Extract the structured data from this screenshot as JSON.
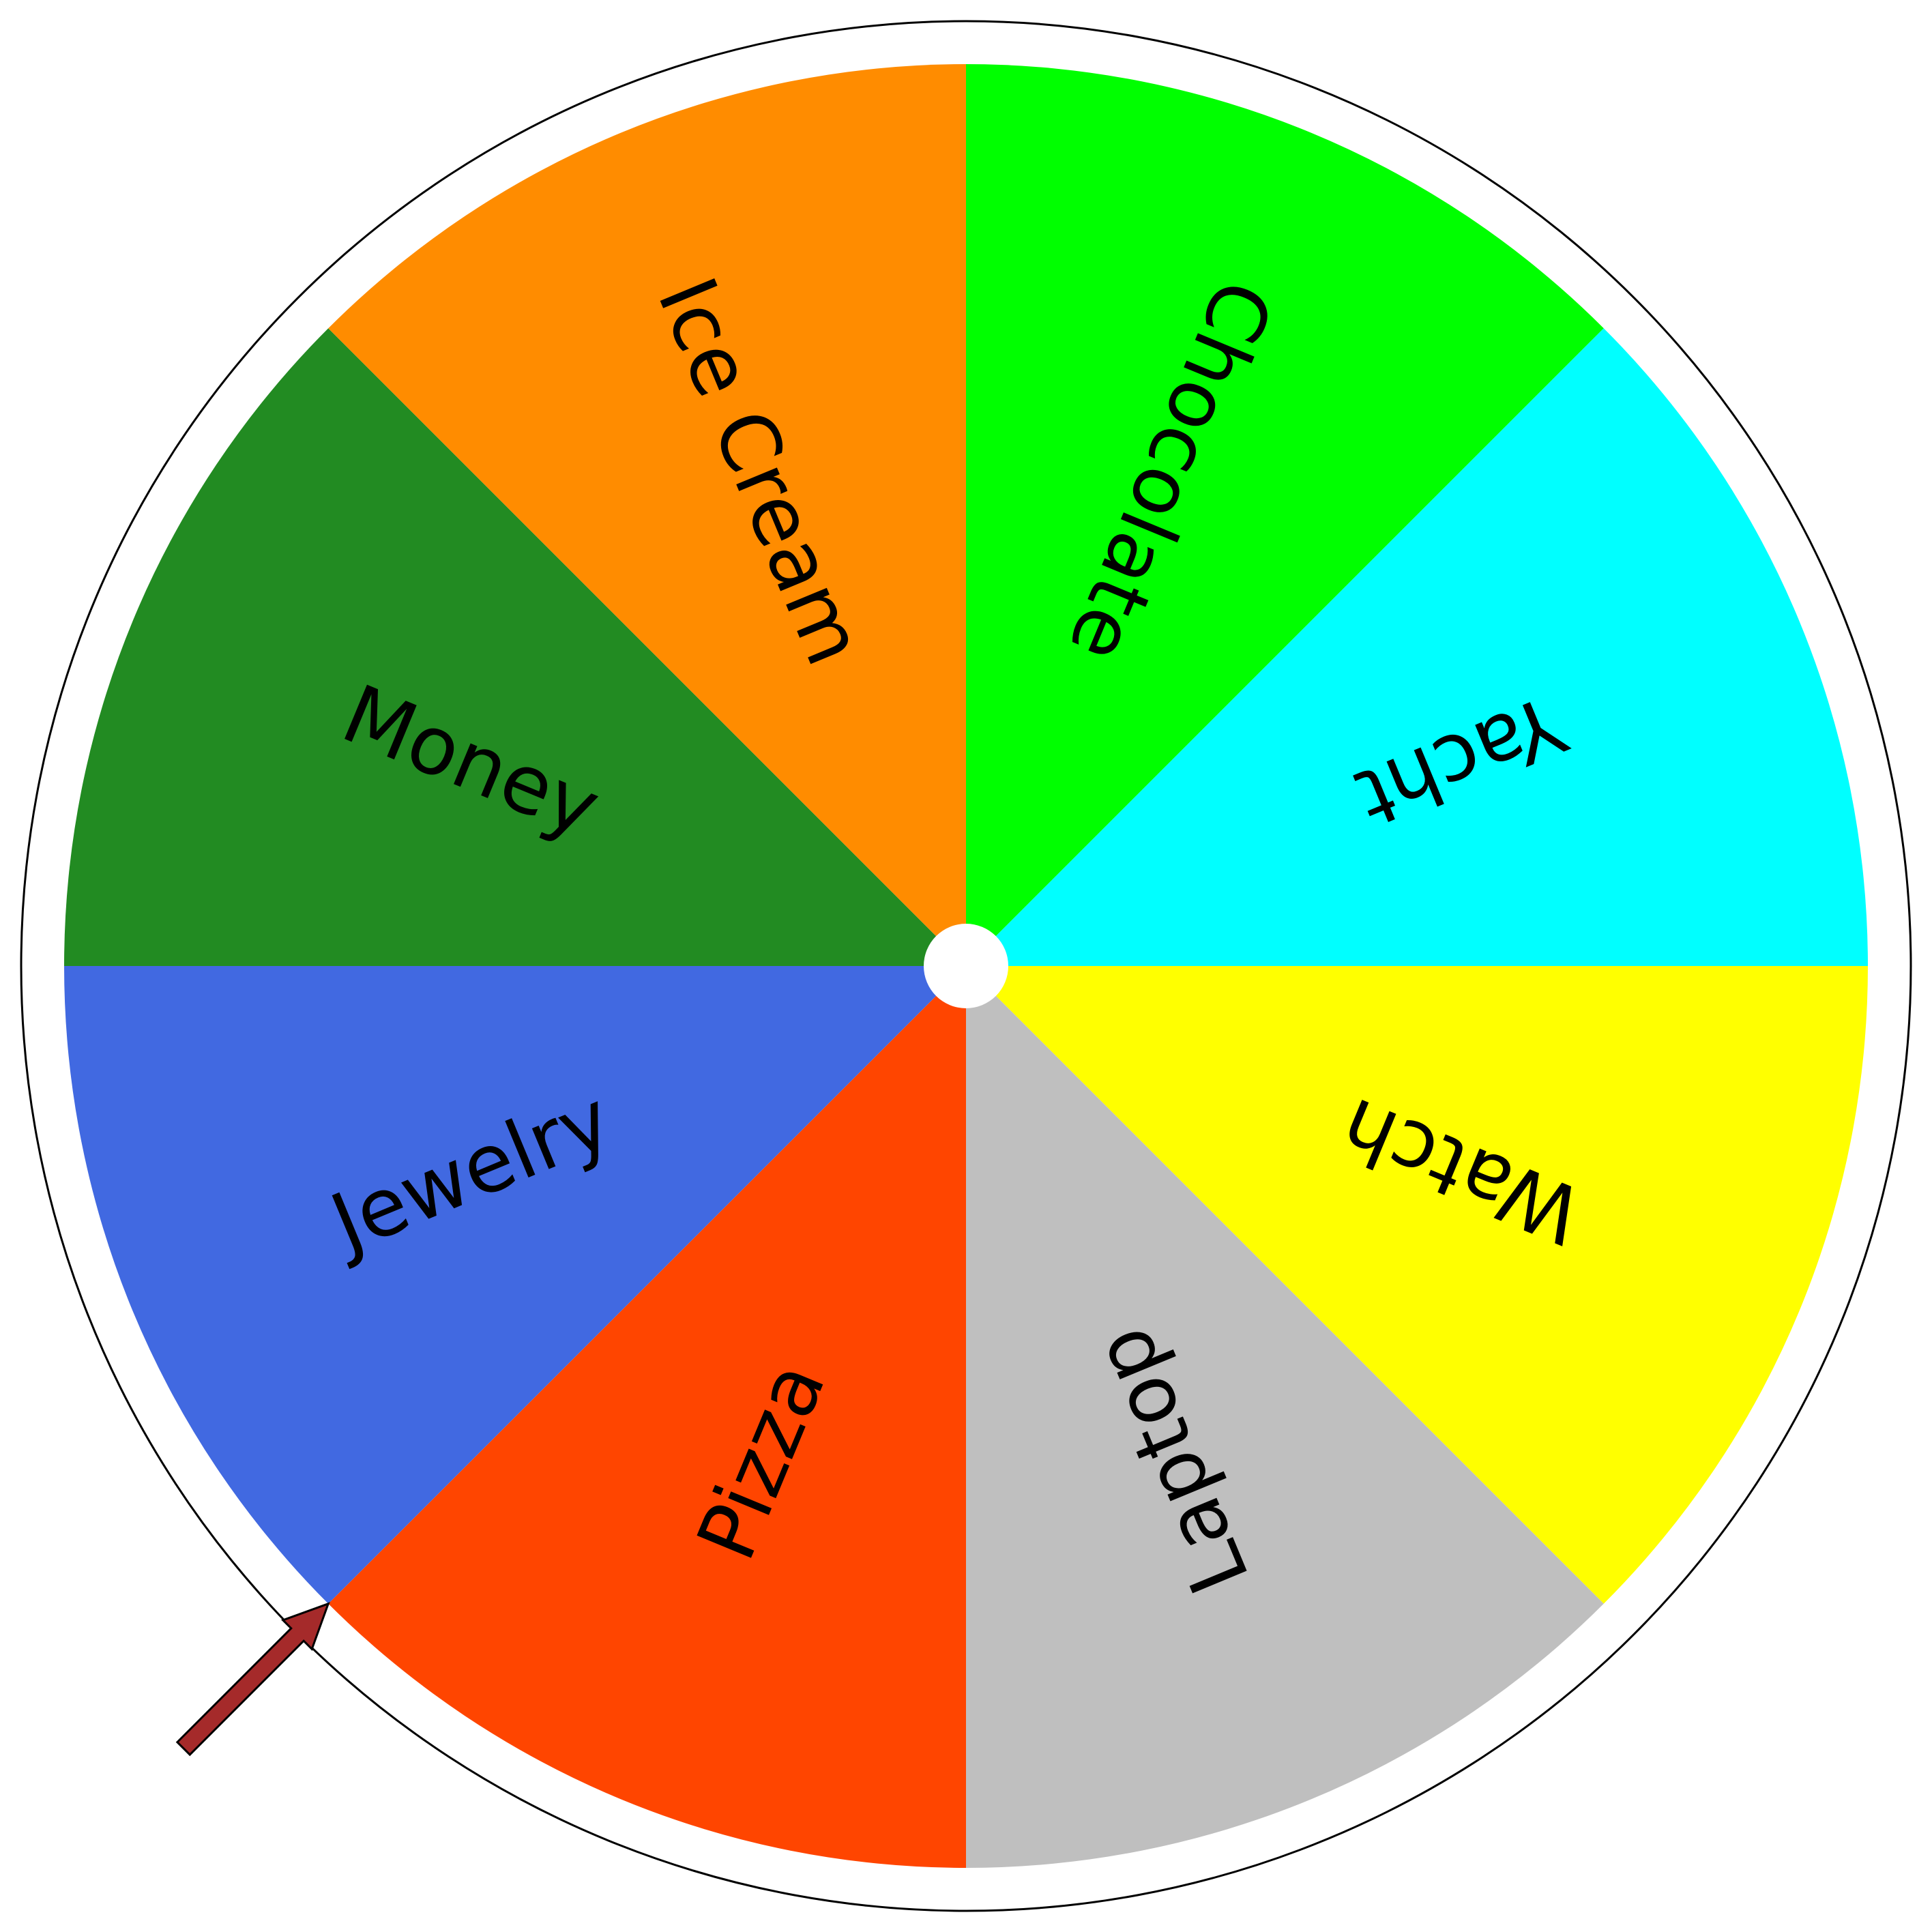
{
  "wheel": {
    "segments": [
      {
        "label": "Chocolate",
        "color": "#00ff00"
      },
      {
        "label": "Yacht",
        "color": "#00ffff"
      },
      {
        "label": "Watch",
        "color": "#ffff00"
      },
      {
        "label": "Laptop",
        "color": "#bfbfbf"
      },
      {
        "label": "Pizza",
        "color": "#ff4500"
      },
      {
        "label": "Jewelry",
        "color": "#4169e1"
      },
      {
        "label": "Money",
        "color": "#228b22"
      },
      {
        "label": "Ice Cream",
        "color": "#ff8c00"
      }
    ],
    "segment_count": 8,
    "rotation_degrees": 0,
    "center_hub_color": "#ffffff",
    "rim_color": "#ffffff",
    "rim_outline_color": "#000000"
  },
  "pointer": {
    "icon": "arrow-pointer-icon",
    "color": "#a52a2a",
    "outline_color": "#000000",
    "points_at": "boundary between Jewelry and Pizza"
  }
}
